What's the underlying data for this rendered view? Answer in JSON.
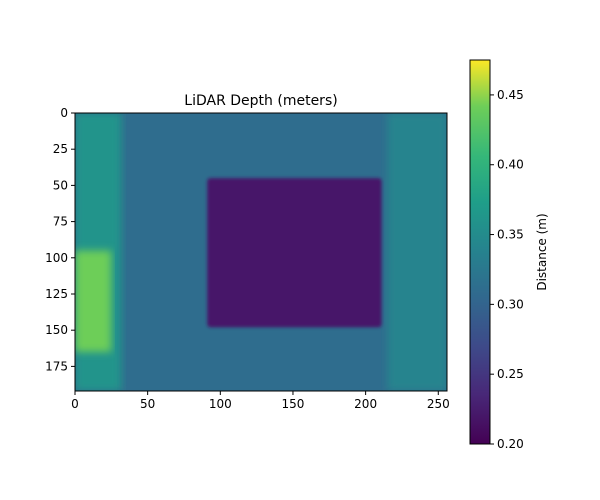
{
  "chart_data": {
    "type": "heatmap",
    "title": "LiDAR Depth (meters)",
    "xlabel": "",
    "ylabel": "",
    "xlim": [
      0,
      256
    ],
    "ylim": [
      192,
      0
    ],
    "x_ticks": [
      0,
      50,
      100,
      150,
      200,
      250
    ],
    "y_ticks": [
      0,
      25,
      50,
      75,
      100,
      125,
      150,
      175
    ],
    "colormap": "viridis",
    "colorbar": {
      "label": "Distance (m)",
      "range": [
        0.2,
        0.475
      ],
      "ticks": [
        "0.20",
        "0.25",
        "0.30",
        "0.35",
        "0.40",
        "0.45"
      ],
      "tick_values": [
        0.2,
        0.25,
        0.3,
        0.35,
        0.4,
        0.45
      ]
    },
    "regions": [
      {
        "label": "background",
        "depth": 0.31
      },
      {
        "label": "left wall strip",
        "x": [
          0,
          32
        ],
        "y": [
          0,
          192
        ],
        "depth": 0.36
      },
      {
        "label": "left bright reflection",
        "x": [
          0,
          25
        ],
        "y": [
          95,
          165
        ],
        "depth": 0.44
      },
      {
        "label": "right edge",
        "x": [
          215,
          256
        ],
        "y": [
          0,
          192
        ],
        "depth": 0.34
      },
      {
        "label": "central object",
        "x": [
          91,
          211
        ],
        "y": [
          45,
          148
        ],
        "depth": 0.22
      }
    ]
  }
}
